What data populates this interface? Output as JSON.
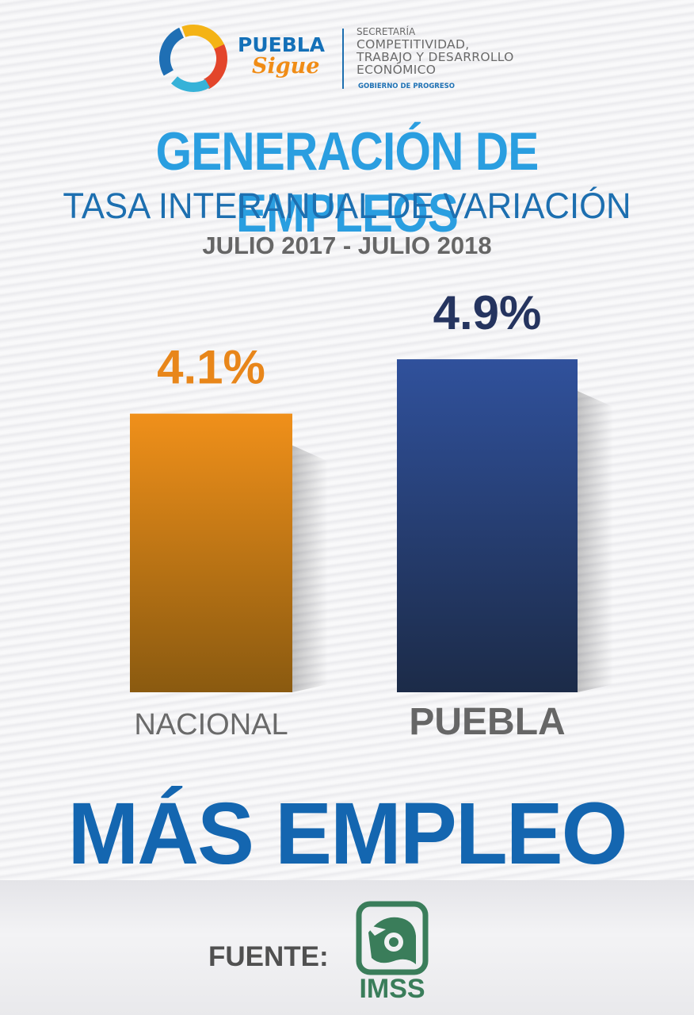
{
  "header": {
    "brand_top": "PUEBLA",
    "brand_bottom": "Sigue",
    "secretaria_label": "SECRETARÍA",
    "secretaria_name": "COMPETITIVIDAD,\nTRABAJO Y DESARROLLO\nECONÓMICO",
    "gov_tag": "GOBIERNO DE PROGRESO"
  },
  "title": "GENERACIÓN DE EMPLEOS",
  "subtitle": "TASA INTERANUAL DE VARIACIÓN",
  "period": "JULIO 2017 - JULIO 2018",
  "chart_data": {
    "type": "bar",
    "title": "GENERACIÓN DE EMPLEOS",
    "subtitle": "TASA INTERANUAL DE VARIACIÓN",
    "period": "JULIO 2017 - JULIO 2018",
    "categories": [
      "NACIONAL",
      "PUEBLA"
    ],
    "values": [
      4.1,
      4.9
    ],
    "value_labels": [
      "4.1%",
      "4.9%"
    ],
    "unit": "%",
    "colors": [
      "#e88a14",
      "#2e4f9c"
    ],
    "label_colors": [
      "#e8861a",
      "#25345f"
    ],
    "grid": false
  },
  "slogan": "MÁS EMPLEO",
  "source": {
    "label": "FUENTE:",
    "logo_text": "IMSS",
    "logo_icon": "imss-eagle-icon"
  },
  "colors": {
    "title_blue": "#2a9ee0",
    "subtitle_blue": "#1d6fb0",
    "slogan_blue": "#1466b0",
    "imss_green": "#3a7d5a"
  }
}
